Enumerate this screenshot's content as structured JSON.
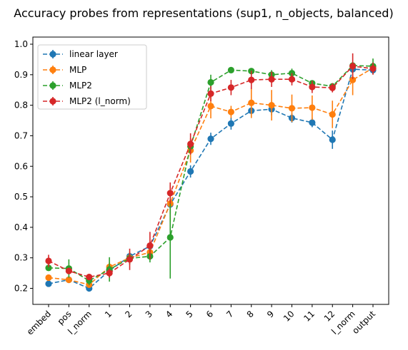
{
  "chart_data": {
    "type": "line",
    "title": "Accuracy probes from representations (sup1, n_objects, balanced)",
    "xlabel": "",
    "ylabel": "",
    "categories": [
      "embed",
      "pos",
      "l_norm",
      "1",
      "2",
      "3",
      "4",
      "5",
      "6",
      "7",
      "8",
      "9",
      "10",
      "11",
      "12",
      "l_norm",
      "output"
    ],
    "yticks": [
      "0.2",
      "0.3",
      "0.4",
      "0.5",
      "0.6",
      "0.7",
      "0.8",
      "0.9",
      "1.0"
    ],
    "ylim": [
      0.15,
      1.02
    ],
    "grid": false,
    "legend_position": "upper-left",
    "line_style": "dashed",
    "error_bars": true,
    "series": [
      {
        "name": "linear layer",
        "color": "#1f77b4",
        "values": [
          0.215,
          0.228,
          0.2,
          0.258,
          0.305,
          0.338,
          0.475,
          0.583,
          0.69,
          0.74,
          0.782,
          0.787,
          0.758,
          0.743,
          0.687,
          0.918,
          0.915
        ],
        "errors": [
          0.005,
          0.005,
          0.01,
          0.01,
          0.01,
          0.015,
          0.03,
          0.02,
          0.02,
          0.02,
          0.015,
          0.02,
          0.015,
          0.015,
          0.03,
          0.01,
          0.008
        ]
      },
      {
        "name": "MLP",
        "color": "#ff7f0e",
        "values": [
          0.235,
          0.228,
          0.212,
          0.27,
          0.3,
          0.318,
          0.478,
          0.652,
          0.797,
          0.778,
          0.808,
          0.8,
          0.79,
          0.792,
          0.77,
          0.883,
          0.922
        ],
        "errors": [
          0.01,
          0.01,
          0.01,
          0.015,
          0.02,
          0.025,
          0.06,
          0.04,
          0.04,
          0.02,
          0.05,
          0.05,
          0.045,
          0.04,
          0.045,
          0.05,
          0.01
        ]
      },
      {
        "name": "MLP2",
        "color": "#2ca02c",
        "values": [
          0.267,
          0.265,
          0.225,
          0.262,
          0.298,
          0.305,
          0.367,
          0.665,
          0.875,
          0.915,
          0.912,
          0.9,
          0.905,
          0.872,
          0.862,
          0.93,
          0.928
        ],
        "errors": [
          0.01,
          0.03,
          0.015,
          0.04,
          0.02,
          0.02,
          0.135,
          0.02,
          0.025,
          0.005,
          0.008,
          0.015,
          0.015,
          0.008,
          0.01,
          0.01,
          0.025
        ]
      },
      {
        "name": "MLP2 (l_norm)",
        "color": "#d62728",
        "values": [
          0.29,
          0.257,
          0.237,
          0.25,
          0.295,
          0.34,
          0.512,
          0.673,
          0.838,
          0.858,
          0.883,
          0.885,
          0.885,
          0.86,
          0.857,
          0.928,
          0.92
        ],
        "errors": [
          0.02,
          0.01,
          0.01,
          0.015,
          0.035,
          0.045,
          0.035,
          0.035,
          0.025,
          0.025,
          0.03,
          0.025,
          0.02,
          0.02,
          0.015,
          0.042,
          0.02
        ]
      }
    ]
  }
}
